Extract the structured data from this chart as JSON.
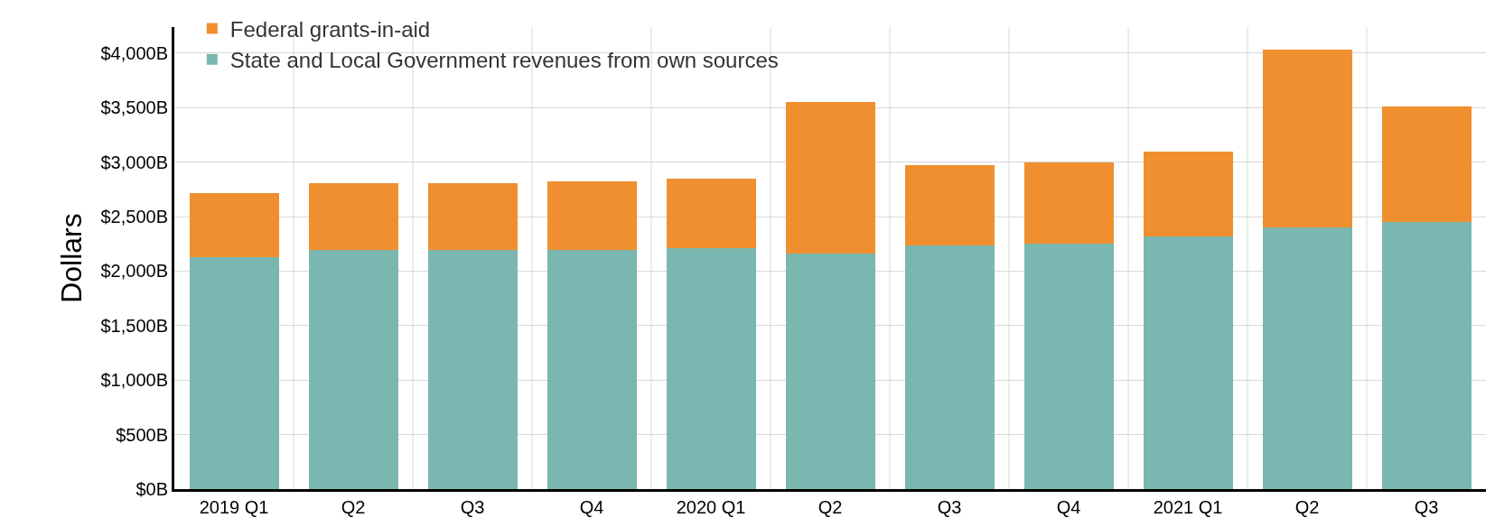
{
  "chart_data": {
    "type": "bar",
    "stacked": true,
    "ylabel": "Dollars",
    "categories": [
      "2019 Q1",
      "Q2",
      "Q3",
      "Q4",
      "2020 Q1",
      "Q2",
      "Q3",
      "Q4",
      "2021 Q1",
      "Q2",
      "Q3"
    ],
    "series": [
      {
        "name": "State and Local Government revenues from own sources",
        "color": "#7ab7b0",
        "values": [
          2130,
          2195,
          2195,
          2195,
          2210,
          2160,
          2240,
          2255,
          2315,
          2400,
          2455
        ]
      },
      {
        "name": "Federal grants-in-aid",
        "color": "#f08f2f",
        "values": [
          590,
          615,
          615,
          625,
          640,
          1395,
          735,
          745,
          780,
          1630,
          1055
        ]
      }
    ],
    "ylim": [
      0,
      4240
    ],
    "yticks": [
      {
        "value": 0,
        "label": "$0B"
      },
      {
        "value": 500,
        "label": "$500B"
      },
      {
        "value": 1000,
        "label": "$1,000B"
      },
      {
        "value": 1500,
        "label": "$1,500B"
      },
      {
        "value": 2000,
        "label": "$2,000B"
      },
      {
        "value": 2500,
        "label": "$2,500B"
      },
      {
        "value": 3000,
        "label": "$3,000B"
      },
      {
        "value": 3500,
        "label": "$3,500B"
      },
      {
        "value": 4000,
        "label": "$4,000B"
      }
    ],
    "grid": true,
    "legend": "top left"
  }
}
